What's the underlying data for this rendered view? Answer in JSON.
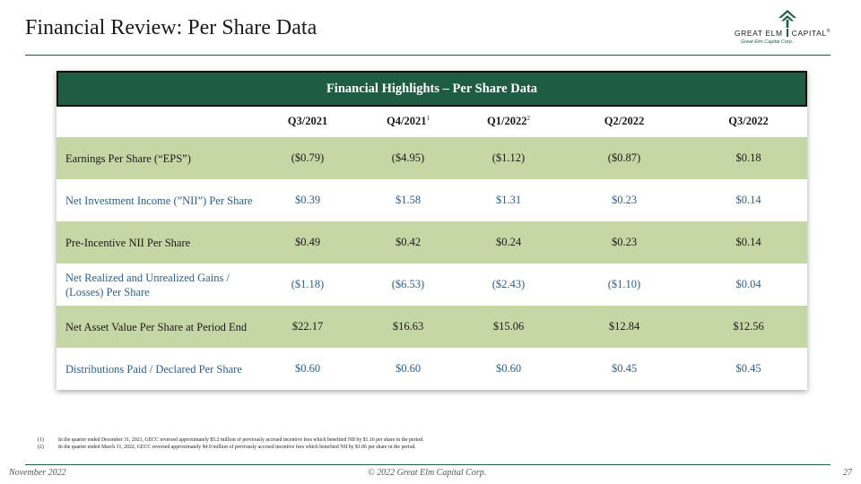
{
  "slide": {
    "title": "Financial Review: Per Share Data"
  },
  "logo": {
    "name_left": "GREAT ELM",
    "name_right": "CAPITAL",
    "trademark": "®",
    "tagline": "Great Elm Capital Corp.",
    "icon": "elm-chevron-icon",
    "color": "#1f5c44"
  },
  "table": {
    "banner": "Financial Highlights – Per Share Data",
    "columns": [
      {
        "label": "Q3/2021",
        "sup": ""
      },
      {
        "label": "Q4/2021",
        "sup": "1"
      },
      {
        "label": "Q1/2022",
        "sup": "2"
      },
      {
        "label": "Q2/2022",
        "sup": ""
      },
      {
        "label": "Q3/2022",
        "sup": ""
      }
    ],
    "rows": [
      {
        "label": "Earnings Per Share (“EPS”)",
        "values": [
          "($0.79)",
          "($4.95)",
          "($1.12)",
          "($0.87)",
          "$0.18"
        ],
        "shaded": true
      },
      {
        "label": "Net Investment Income (”NII”) Per Share",
        "values": [
          "$0.39",
          "$1.58",
          "$1.31",
          "$0.23",
          "$0.14"
        ],
        "shaded": false
      },
      {
        "label": "Pre-Incentive NII Per Share",
        "values": [
          "$0.49",
          "$0.42",
          "$0.24",
          "$0.23",
          "$0.14"
        ],
        "shaded": true
      },
      {
        "label": "Net Realized and Unrealized Gains / (Losses) Per Share",
        "values": [
          "($1.18)",
          "($6.53)",
          "($2.43)",
          "($1.10)",
          "$0.04"
        ],
        "shaded": false
      },
      {
        "label": "Net Asset Value Per Share at Period End",
        "values": [
          "$22.17",
          "$16.63",
          "$15.06",
          "$12.84",
          "$12.56"
        ],
        "shaded": true
      },
      {
        "label": "Distributions Paid / Declared Per Share",
        "values": [
          "$0.60",
          "$0.60",
          "$0.60",
          "$0.45",
          "$0.45"
        ],
        "shaded": false
      }
    ],
    "colors": {
      "header_bg": "#1f5c44",
      "shaded_row": "#c5d7a5",
      "plain_row_text": "#2e5e88"
    }
  },
  "footnotes": [
    {
      "num": "(1)",
      "text": "In the quarter ended December 31, 2021, GECC reversed approximately $5.2 million of previously accrued incentive fees which benefited NII by $1.16 per share in the period."
    },
    {
      "num": "(2)",
      "text": "In the quarter ended March 31, 2022, GECC reversed approximately $4.9 million of previously accrued incentive fees which benefited NII by $1.06 per share in the period."
    }
  ],
  "footer": {
    "date": "November 2022",
    "copyright": "© 2022 Great Elm Capital Corp.",
    "page": "27"
  }
}
